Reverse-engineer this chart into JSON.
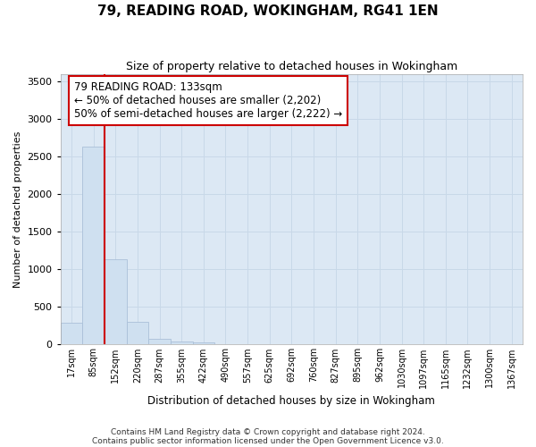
{
  "title1": "79, READING ROAD, WOKINGHAM, RG41 1EN",
  "title2": "Size of property relative to detached houses in Wokingham",
  "xlabel": "Distribution of detached houses by size in Wokingham",
  "ylabel": "Number of detached properties",
  "bar_values": [
    290,
    2640,
    1140,
    300,
    80,
    45,
    30,
    0,
    0,
    0,
    0,
    0,
    0,
    0,
    0,
    0,
    0,
    0,
    0,
    0,
    0
  ],
  "categories": [
    "17sqm",
    "85sqm",
    "152sqm",
    "220sqm",
    "287sqm",
    "355sqm",
    "422sqm",
    "490sqm",
    "557sqm",
    "625sqm",
    "692sqm",
    "760sqm",
    "827sqm",
    "895sqm",
    "962sqm",
    "1030sqm",
    "1097sqm",
    "1165sqm",
    "1232sqm",
    "1300sqm",
    "1367sqm"
  ],
  "bar_color": "#cfe0f0",
  "bar_edge_color": "#aac0d8",
  "annotation_text": "79 READING ROAD: 133sqm\n← 50% of detached houses are smaller (2,202)\n50% of semi-detached houses are larger (2,222) →",
  "annotation_box_facecolor": "#ffffff",
  "annotation_box_edgecolor": "#cc0000",
  "vline_color": "#cc0000",
  "vline_x": 2.0,
  "ylim": [
    0,
    3600
  ],
  "yticks": [
    0,
    500,
    1000,
    1500,
    2000,
    2500,
    3000,
    3500
  ],
  "grid_color": "#c8d8e8",
  "bg_color": "#dce8f4",
  "footnote1": "Contains HM Land Registry data © Crown copyright and database right 2024.",
  "footnote2": "Contains public sector information licensed under the Open Government Licence v3.0."
}
